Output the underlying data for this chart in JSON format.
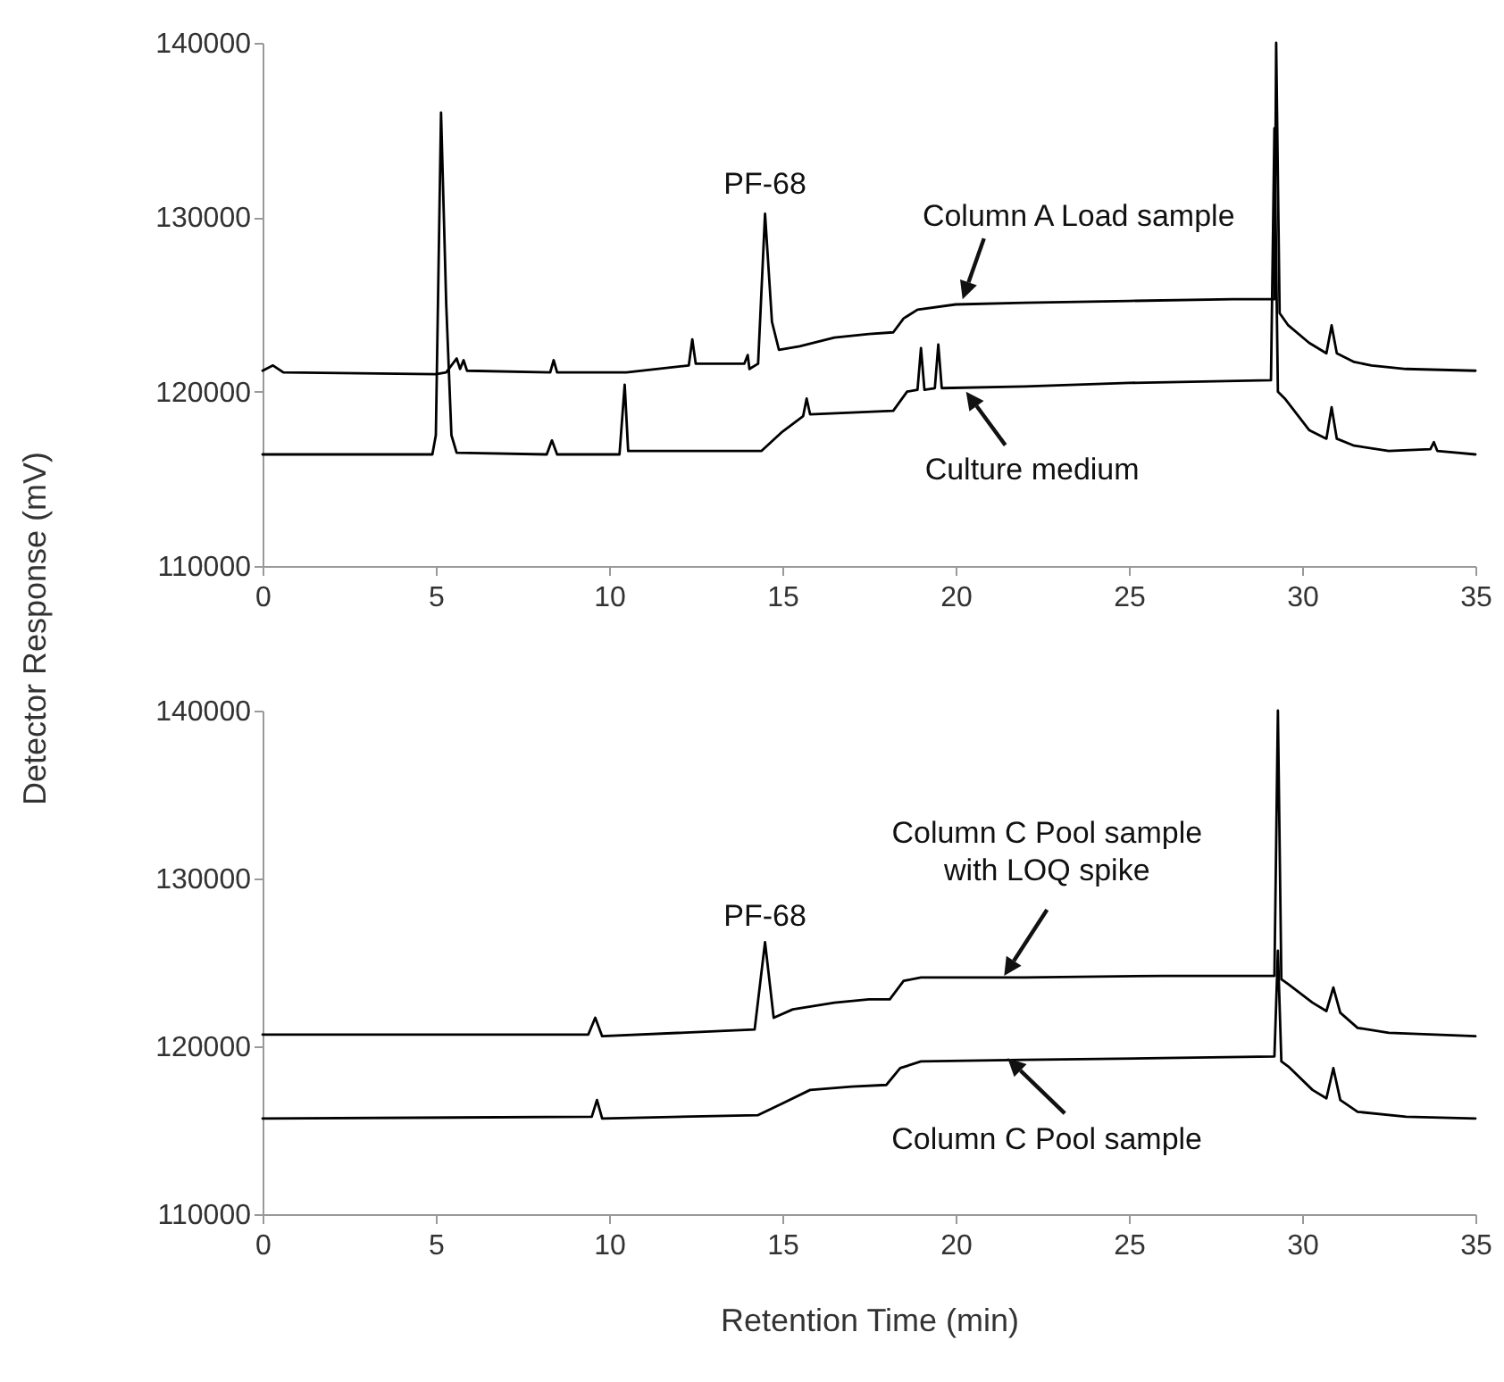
{
  "chart_data": [
    {
      "type": "line",
      "ylabel": "Detector Response (mV)",
      "xlim": [
        0,
        35
      ],
      "xticks": [
        0,
        5,
        10,
        15,
        20,
        25,
        30,
        35
      ],
      "ylim": [
        110000,
        140000
      ],
      "yticks": [
        110000,
        120000,
        130000,
        140000
      ],
      "line_style": "solid",
      "series": [
        {
          "color": "#000000",
          "x": [
            0,
            0.3,
            0.6,
            5.0,
            5.3,
            5.6,
            5.7,
            5.8,
            5.9,
            8.3,
            8.4,
            8.5,
            10.5,
            12.3,
            12.4,
            12.5,
            13.9,
            14.0,
            14.05,
            14.3,
            14.5,
            14.7,
            14.9,
            15.5,
            16.5,
            17.5,
            18.2,
            18.5,
            18.9,
            20,
            22,
            25,
            28,
            29.2,
            29.25,
            29.35,
            29.6,
            30.2,
            30.7,
            30.85,
            31.0,
            31.5,
            32,
            33,
            35
          ],
          "values": [
            121200,
            121500,
            121100,
            121000,
            121100,
            121900,
            121300,
            121800,
            121200,
            121100,
            121800,
            121100,
            121100,
            121500,
            123000,
            121600,
            121600,
            122100,
            121300,
            121600,
            130200,
            124000,
            122400,
            122600,
            123100,
            123300,
            123400,
            124200,
            124700,
            125000,
            125100,
            125200,
            125300,
            125300,
            140000,
            124500,
            123800,
            122800,
            122200,
            123800,
            122200,
            121700,
            121500,
            121300,
            121200
          ]
        },
        {
          "color": "#000000",
          "x": [
            0,
            4.9,
            5.0,
            5.15,
            5.3,
            5.45,
            5.6,
            8.2,
            8.35,
            8.5,
            10.3,
            10.45,
            10.55,
            14.4,
            15.0,
            15.6,
            15.7,
            15.8,
            17,
            18.2,
            18.6,
            18.9,
            19.0,
            19.1,
            19.4,
            19.5,
            19.6,
            22,
            25,
            29.1,
            29.2,
            29.3,
            29.5,
            30.2,
            30.7,
            30.85,
            31.0,
            31.5,
            32.5,
            33.7,
            33.8,
            33.9,
            35
          ],
          "values": [
            116400,
            116400,
            117500,
            136000,
            125000,
            117500,
            116500,
            116400,
            117200,
            116400,
            116400,
            120400,
            116600,
            116600,
            117700,
            118600,
            119600,
            118700,
            118800,
            118900,
            120000,
            120100,
            122500,
            120100,
            120200,
            122700,
            120200,
            120300,
            120500,
            120650,
            135100,
            120000,
            119600,
            117800,
            117300,
            119100,
            117300,
            116900,
            116600,
            116700,
            117100,
            116600,
            116400
          ]
        }
      ],
      "annotations": [
        {
          "text": "PF-68",
          "x": 14.5,
          "y": 130200
        },
        {
          "text": "Column A Load sample",
          "x": 20.2,
          "y": 125300
        },
        {
          "text": "Culture medium",
          "x": 20.3,
          "y": 120000
        }
      ]
    },
    {
      "type": "line",
      "xlabel": "Retention Time (min)",
      "xlim": [
        0,
        35
      ],
      "xticks": [
        0,
        5,
        10,
        15,
        20,
        25,
        30,
        35
      ],
      "ylim": [
        110000,
        140000
      ],
      "yticks": [
        110000,
        120000,
        130000,
        140000
      ],
      "line_style": "solid",
      "series": [
        {
          "color": "#000000",
          "x": [
            0,
            9.4,
            9.6,
            9.8,
            14.2,
            14.5,
            14.75,
            15.3,
            16.5,
            17.5,
            18.1,
            18.5,
            19,
            22,
            26,
            29.2,
            29.3,
            29.4,
            29.6,
            30.3,
            30.7,
            30.9,
            31.1,
            31.6,
            32.5,
            35
          ],
          "values": [
            120700,
            120700,
            121700,
            120600,
            121000,
            126200,
            121700,
            122200,
            122600,
            122800,
            122800,
            123900,
            124100,
            124100,
            124200,
            124200,
            140000,
            124000,
            123700,
            122600,
            122100,
            123500,
            122000,
            121100,
            120800,
            120600
          ]
        },
        {
          "color": "#000000",
          "x": [
            0,
            9.5,
            9.65,
            9.8,
            14.3,
            15,
            15.8,
            17,
            18.0,
            18.4,
            19,
            22,
            26,
            29.2,
            29.3,
            29.4,
            29.6,
            30.3,
            30.7,
            30.9,
            31.1,
            31.6,
            33,
            35
          ],
          "values": [
            115700,
            115800,
            116800,
            115700,
            115900,
            116600,
            117400,
            117600,
            117700,
            118700,
            119100,
            119200,
            119300,
            119400,
            125700,
            119100,
            118800,
            117400,
            116900,
            118700,
            116800,
            116100,
            115800,
            115700
          ]
        }
      ],
      "annotations": [
        {
          "text": "PF-68",
          "x": 14.5,
          "y": 126200
        },
        {
          "text": "Column C Pool sample\nwith LOQ spike",
          "x": 21.4,
          "y": 124200
        },
        {
          "text": "Column C Pool sample",
          "x": 21.5,
          "y": 119300
        }
      ]
    }
  ]
}
